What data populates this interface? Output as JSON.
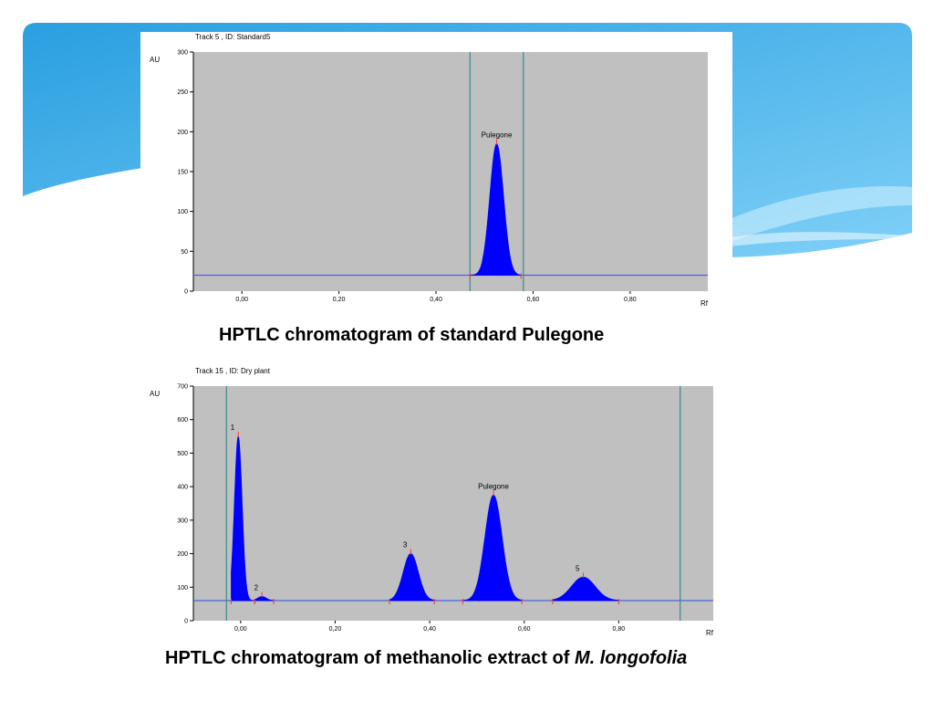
{
  "slide": {
    "caption1": "HPTLC chromatogram of standard Pulegone",
    "caption2_text": "HPTLC chromatogram of methanolic extract of ",
    "caption2_species": "M. longofolia",
    "theme_colors": {
      "banner_dark": "#1a8fd6",
      "banner_light": "#7fd0f7",
      "plot_bg": "#c0c0c0",
      "peak_fill": "#0000ff",
      "baseline": "#4466dd",
      "marker": "#ff3333",
      "window_line": "#3a8a8a"
    }
  },
  "chart_data": [
    {
      "type": "area",
      "title": "Track  5 , ID: Standard5",
      "ylabel": "AU",
      "xlabel": "Rf",
      "ylim": [
        0,
        300
      ],
      "y_ticks": [
        0,
        50,
        100,
        150,
        200,
        250,
        300
      ],
      "y_tick_labels": [
        "0",
        "50",
        "100",
        "150",
        "200",
        "250",
        "300"
      ],
      "xlim": [
        -0.1,
        0.96
      ],
      "x_ticks": [
        0.0,
        0.2,
        0.4,
        0.6,
        0.8
      ],
      "x_tick_labels": [
        "0,00",
        "0,20",
        "0,40",
        "0,60",
        "0,80"
      ],
      "baseline": 20,
      "integration_window": [
        0.47,
        0.58
      ],
      "peaks": [
        {
          "label": "Pulegone",
          "rf": 0.525,
          "height": 185,
          "start": 0.47,
          "end": 0.575,
          "width": 0.014
        }
      ]
    },
    {
      "type": "area",
      "title": "Track  15 , ID: Dry plant",
      "ylabel": "AU",
      "xlabel": "Rf",
      "ylim": [
        0,
        700
      ],
      "y_ticks": [
        0,
        100,
        200,
        300,
        400,
        500,
        600,
        700
      ],
      "y_tick_labels": [
        "0",
        "100",
        "200",
        "300",
        "400",
        "500",
        "600",
        "700"
      ],
      "xlim": [
        -0.1,
        1.0
      ],
      "x_ticks": [
        0.0,
        0.2,
        0.4,
        0.6,
        0.8
      ],
      "x_tick_labels": [
        "0,00",
        "0,20",
        "0,40",
        "0,60",
        "0,80"
      ],
      "baseline": 60,
      "integration_window": [
        -0.03,
        0.93
      ],
      "peaks": [
        {
          "label": "1",
          "rf": -0.005,
          "height": 550,
          "start": -0.02,
          "end": 0.03,
          "width": 0.008
        },
        {
          "label": "2",
          "rf": 0.045,
          "height": 72,
          "start": 0.03,
          "end": 0.07,
          "width": 0.009
        },
        {
          "label": "3",
          "rf": 0.36,
          "height": 200,
          "start": 0.315,
          "end": 0.41,
          "width": 0.016
        },
        {
          "label": "Pulegone",
          "rf": 0.535,
          "height": 375,
          "start": 0.47,
          "end": 0.595,
          "width": 0.018
        },
        {
          "label": "5",
          "rf": 0.725,
          "height": 130,
          "start": 0.66,
          "end": 0.8,
          "width": 0.025
        }
      ]
    }
  ]
}
